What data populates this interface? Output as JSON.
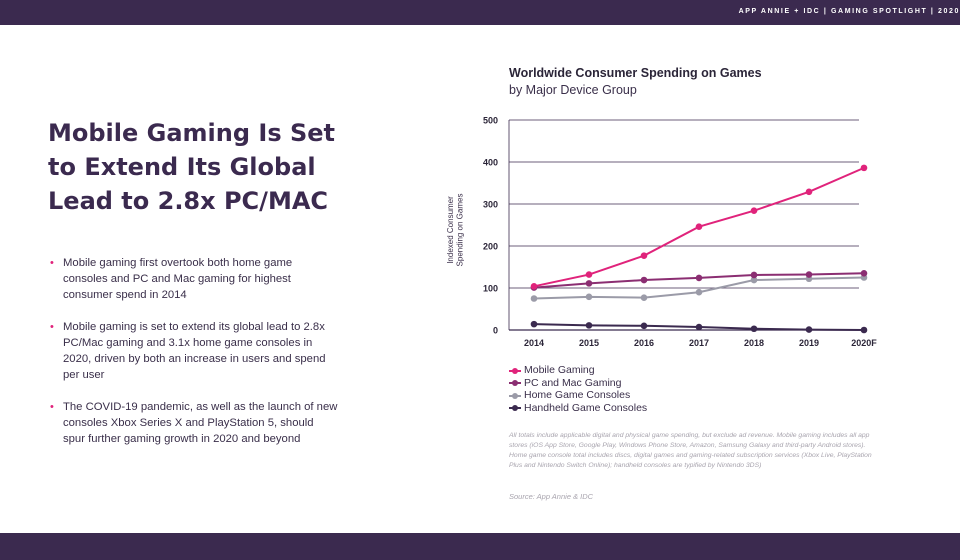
{
  "header": {
    "brand": "APP ANNIE + IDC  |  GAMING SPOTLIGHT  |  2020"
  },
  "headline": "Mobile Gaming Is Set to Extend Its Global Lead to 2.8x PC/MAC",
  "bullets": [
    "Mobile gaming first overtook both home game consoles and PC and Mac gaming for highest consumer spend in 2014",
    "Mobile gaming is set to extend its global lead to 2.8x PC/Mac gaming and 3.1x home game consoles in 2020, driven by both an increase in users and spend per user",
    "The COVID-19 pandemic, as well as the launch of new consoles Xbox Series X and PlayStation 5, should spur further gaming growth in 2020 and beyond"
  ],
  "footnote": "All totals include applicable digital and physical game spending, but exclude ad revenue. Mobile gaming includes  all app stores (iOS App Store, Google Play, Windows Phone Store, Amazon, Samsung Galaxy and third-party Android stores). Home game console total includes discs, digital games and gaming-related subscription services (Xbox Live, PlayStation Plus and Nintendo Switch Online); handheld consoles are typified by Nintendo 3DS)",
  "source": "Source: App Annie & IDC",
  "chart_data": {
    "type": "line",
    "title": "Worldwide Consumer Spending on Games",
    "subtitle": "by Major Device Group",
    "xlabel": "",
    "ylabel": "Indexed Consumer Spending on Games",
    "categories": [
      "2014",
      "2015",
      "2016",
      "2017",
      "2018",
      "2019",
      "2020F"
    ],
    "ylim": [
      0,
      500
    ],
    "yticks": [
      "0",
      "100",
      "200",
      "300",
      "400",
      "500"
    ],
    "series": [
      {
        "name": "Mobile Gaming",
        "color": "#e0237b",
        "values": [
          104,
          132,
          177,
          246,
          284,
          329,
          386
        ]
      },
      {
        "name": "PC and Mac Gaming",
        "color": "#8b2e72",
        "values": [
          101,
          111,
          119,
          124,
          131,
          132,
          135
        ]
      },
      {
        "name": "Home Game Consoles",
        "color": "#9b9ba8",
        "values": [
          75,
          79,
          77,
          90,
          119,
          122,
          125
        ]
      },
      {
        "name": "Handheld Game Consoles",
        "color": "#3b2a4f",
        "values": [
          14,
          11,
          10,
          7,
          3,
          1,
          0
        ]
      }
    ]
  }
}
